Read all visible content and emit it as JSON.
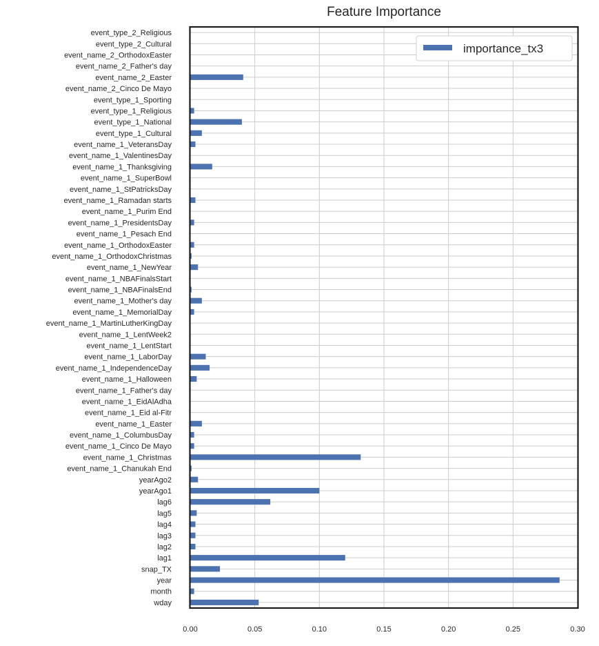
{
  "chart_data": {
    "type": "bar",
    "orientation": "horizontal",
    "title": "Feature Importance",
    "xlabel": "",
    "ylabel": "",
    "xlim": [
      0.0,
      0.3
    ],
    "xticks": [
      "0.00",
      "0.05",
      "0.10",
      "0.15",
      "0.20",
      "0.25",
      "0.30"
    ],
    "grid": true,
    "legend_position": "top-right",
    "bar_color": "#4c72b0",
    "categories": [
      "wday",
      "month",
      "year",
      "snap_TX",
      "lag1",
      "lag2",
      "lag3",
      "lag4",
      "lag5",
      "lag6",
      "yearAgo1",
      "yearAgo2",
      "event_name_1_Chanukah End",
      "event_name_1_Christmas",
      "event_name_1_Cinco De Mayo",
      "event_name_1_ColumbusDay",
      "event_name_1_Easter",
      "event_name_1_Eid al-Fitr",
      "event_name_1_EidAlAdha",
      "event_name_1_Father's day",
      "event_name_1_Halloween",
      "event_name_1_IndependenceDay",
      "event_name_1_LaborDay",
      "event_name_1_LentStart",
      "event_name_1_LentWeek2",
      "event_name_1_MartinLutherKingDay",
      "event_name_1_MemorialDay",
      "event_name_1_Mother's day",
      "event_name_1_NBAFinalsEnd",
      "event_name_1_NBAFinalsStart",
      "event_name_1_NewYear",
      "event_name_1_OrthodoxChristmas",
      "event_name_1_OrthodoxEaster",
      "event_name_1_Pesach End",
      "event_name_1_PresidentsDay",
      "event_name_1_Purim End",
      "event_name_1_Ramadan starts",
      "event_name_1_StPatricksDay",
      "event_name_1_SuperBowl",
      "event_name_1_Thanksgiving",
      "event_name_1_ValentinesDay",
      "event_name_1_VeteransDay",
      "event_type_1_Cultural",
      "event_type_1_National",
      "event_type_1_Religious",
      "event_type_1_Sporting",
      "event_name_2_Cinco De Mayo",
      "event_name_2_Easter",
      "event_name_2_Father's day",
      "event_name_2_OrthodoxEaster",
      "event_type_2_Cultural",
      "event_type_2_Religious"
    ],
    "series": [
      {
        "name": "importance_tx3",
        "values": [
          0.053,
          0.003,
          0.286,
          0.023,
          0.12,
          0.004,
          0.004,
          0.004,
          0.005,
          0.062,
          0.1,
          0.006,
          0.001,
          0.132,
          0.003,
          0.003,
          0.009,
          0.0,
          0.0,
          0.0,
          0.005,
          0.015,
          0.012,
          0.0,
          0.0,
          0.0,
          0.003,
          0.009,
          0.001,
          0.0,
          0.006,
          0.001,
          0.003,
          0.0,
          0.003,
          0.0,
          0.004,
          0.0,
          0.0,
          0.017,
          0.0,
          0.004,
          0.009,
          0.04,
          0.003,
          0.0,
          0.0,
          0.041,
          0.0,
          0.0,
          0.0,
          0.0
        ]
      }
    ]
  }
}
